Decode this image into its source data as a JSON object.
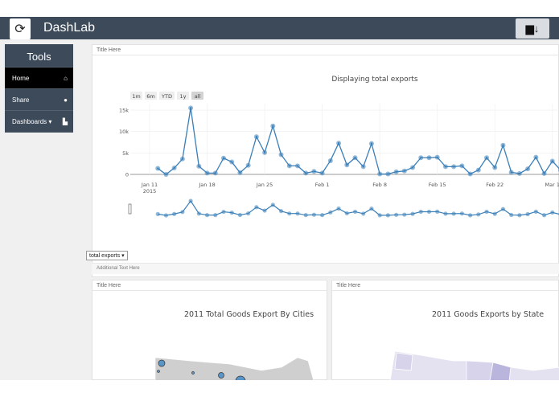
{
  "header": {
    "brand": "DashLab",
    "refresh_icon": "refresh-icon",
    "save_icon": "save-icon"
  },
  "sidebar": {
    "title": "Tools",
    "items": [
      {
        "label": "Home",
        "icon": "home-icon",
        "active": true
      },
      {
        "label": "Share",
        "icon": "user-icon"
      },
      {
        "label": "Dashboards ▾",
        "icon": "dashboard-icon"
      }
    ]
  },
  "main_panel": {
    "title": "Title Here",
    "dropdown_value": "total exports",
    "footer_text": "Additional Text Here"
  },
  "range_buttons": [
    "1m",
    "6m",
    "YTD",
    "1y",
    "all"
  ],
  "left_panel": {
    "title": "Title Here",
    "map_title": "2011 Total Goods Export By Cities"
  },
  "right_panel": {
    "title": "Title Here",
    "map_title": "2011 Goods Exports by State"
  },
  "chart_data": {
    "type": "line",
    "title": "Displaying total exports",
    "x_start": "2015-01-12",
    "x_ticks": [
      "Jan 11\n2015",
      "Jan 18",
      "Jan 25",
      "Feb 1",
      "Feb 8",
      "Feb 15",
      "Feb 22",
      "Mar 1"
    ],
    "y_ticks": [
      "0",
      "5k",
      "10k",
      "15k"
    ],
    "ylim": [
      0,
      15000
    ],
    "grid": true,
    "color": "#3a7fb8",
    "values": [
      1400,
      0,
      1500,
      3600,
      15500,
      1900,
      300,
      300,
      3800,
      2900,
      400,
      2100,
      8800,
      5100,
      11300,
      4600,
      2000,
      2000,
      300,
      700,
      300,
      3200,
      7300,
      2200,
      3900,
      1800,
      7200,
      100,
      100,
      600,
      800,
      1600,
      3900,
      3900,
      4000,
      1800,
      1800,
      2000,
      100,
      1000,
      3900,
      1600,
      6800,
      500,
      200,
      1300,
      4000,
      200,
      3100,
      1000
    ]
  }
}
